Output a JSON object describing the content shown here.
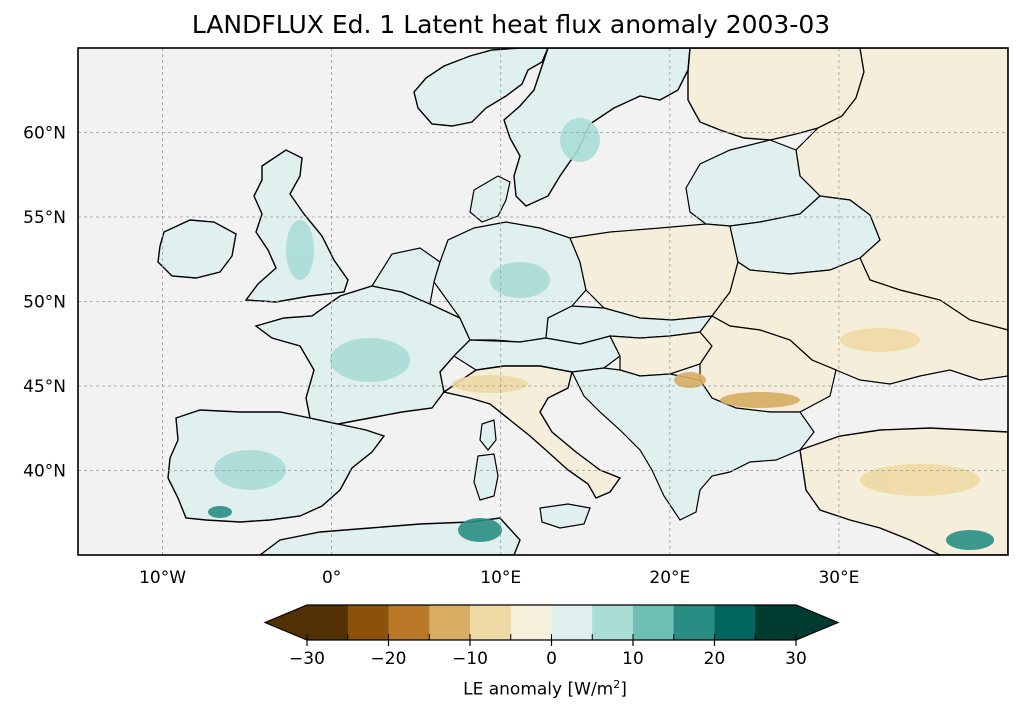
{
  "title": "LANDFLUX Ed. 1 Latent heat flux anomaly 2003-03",
  "map": {
    "projection": "PlateCarree",
    "lon_range": [
      -15,
      40
    ],
    "lat_range": [
      35,
      65
    ],
    "gridlines": true,
    "ocean_color": "#f2f2f2",
    "coastline_color": "#000000",
    "lon_ticks": [
      {
        "lon": -10,
        "label": "10°W"
      },
      {
        "lon": 0,
        "label": "0°"
      },
      {
        "lon": 10,
        "label": "10°E"
      },
      {
        "lon": 20,
        "label": "20°E"
      },
      {
        "lon": 30,
        "label": "30°E"
      }
    ],
    "lat_ticks": [
      {
        "lat": 60,
        "label": "60°N"
      },
      {
        "lat": 55,
        "label": "55°N"
      },
      {
        "lat": 50,
        "label": "50°N"
      },
      {
        "lat": 45,
        "label": "45°N"
      },
      {
        "lat": 40,
        "label": "40°N"
      }
    ]
  },
  "colorbar": {
    "label_prefix": "LE anomaly [W/m",
    "label_sup": "2",
    "label_suffix": "]",
    "extend": "both",
    "levels": [
      -30,
      -25,
      -20,
      -15,
      -10,
      -5,
      0,
      5,
      10,
      15,
      20,
      25,
      30
    ],
    "tick_values": [
      -30,
      -20,
      -10,
      0,
      10,
      20,
      30
    ],
    "tick_labels": [
      "−30",
      "−20",
      "−10",
      "0",
      "10",
      "20",
      "30"
    ],
    "colors": [
      "#543005",
      "#8c510a",
      "#b87828",
      "#d7ad62",
      "#efd9a4",
      "#f6efdc",
      "#dff0ee",
      "#a9ddd5",
      "#6cbfb2",
      "#2a8d84",
      "#01665e",
      "#003c30"
    ],
    "under_color": "#543005",
    "over_color": "#003c30"
  }
}
